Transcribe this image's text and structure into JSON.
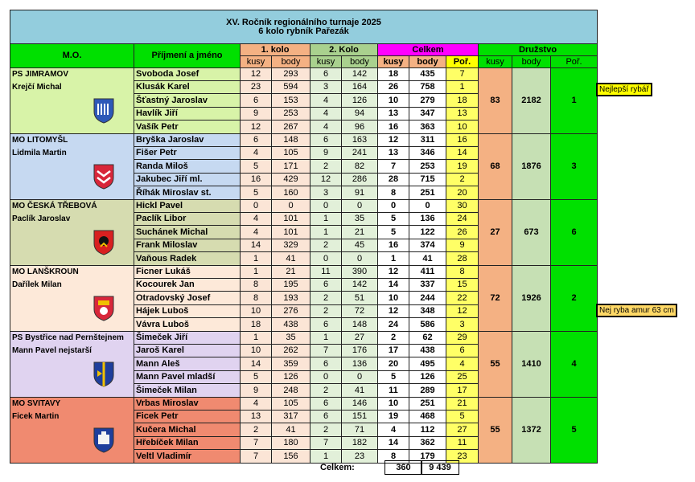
{
  "title": {
    "line1": "XV. Ročník regionálního turnaje 2025",
    "line2": "6 kolo rybník Pařezák"
  },
  "headers": {
    "mo": "M.O.",
    "name": "Příjmení a jméno",
    "kolo1": "1. kolo",
    "kolo2": "2. Kolo",
    "celkem": "Celkem",
    "druzstvo": "Družstvo",
    "kusy": "kusy",
    "body": "body",
    "por": "Poř."
  },
  "teams": [
    {
      "mo": "PS JIMRAMOV",
      "captain": "Krejčí Michal",
      "crest": "crest-jimramov",
      "colors": {
        "mo": "#d8f3a8",
        "name": "#d8f3a8"
      },
      "team": {
        "kusy": "83",
        "body": "2182",
        "por": "1"
      },
      "rows": [
        {
          "name": "Svoboda Josef",
          "k1k": "12",
          "k1b": "293",
          "k2k": "6",
          "k2b": "142",
          "ck": "18",
          "cb": "435",
          "por": "7"
        },
        {
          "name": "Klusák Karel",
          "k1k": "23",
          "k1b": "594",
          "k2k": "3",
          "k2b": "164",
          "ck": "26",
          "cb": "758",
          "por": "1"
        },
        {
          "name": "Šťastný Jaroslav",
          "k1k": "6",
          "k1b": "153",
          "k2k": "4",
          "k2b": "126",
          "ck": "10",
          "cb": "279",
          "por": "18"
        },
        {
          "name": "Havlík Jiří",
          "k1k": "9",
          "k1b": "253",
          "k2k": "4",
          "k2b": "94",
          "ck": "13",
          "cb": "347",
          "por": "13"
        },
        {
          "name": "Vašík Petr",
          "k1k": "12",
          "k1b": "267",
          "k2k": "4",
          "k2b": "96",
          "ck": "16",
          "cb": "363",
          "por": "10"
        }
      ]
    },
    {
      "mo": "MO LITOMYŠL",
      "captain": "Lidmila Martin",
      "crest": "crest-litomysl",
      "colors": {
        "mo": "#c6d9f1",
        "name": "#c6d9f1"
      },
      "team": {
        "kusy": "68",
        "body": "1876",
        "por": "3"
      },
      "rows": [
        {
          "name": "Bryška Jaroslav",
          "k1k": "6",
          "k1b": "148",
          "k2k": "6",
          "k2b": "163",
          "ck": "12",
          "cb": "311",
          "por": "16"
        },
        {
          "name": "Fišer Petr",
          "k1k": "4",
          "k1b": "105",
          "k2k": "9",
          "k2b": "241",
          "ck": "13",
          "cb": "346",
          "por": "14"
        },
        {
          "name": "Randa Miloš",
          "k1k": "5",
          "k1b": "171",
          "k2k": "2",
          "k2b": "82",
          "ck": "7",
          "cb": "253",
          "por": "19"
        },
        {
          "name": "Jakubec Jiří ml.",
          "k1k": "16",
          "k1b": "429",
          "k2k": "12",
          "k2b": "286",
          "ck": "28",
          "cb": "715",
          "por": "2"
        },
        {
          "name": "Říhák Miroslav st.",
          "k1k": "5",
          "k1b": "160",
          "k2k": "3",
          "k2b": "91",
          "ck": "8",
          "cb": "251",
          "por": "20"
        }
      ]
    },
    {
      "mo": "MO ČESKÁ TŘEBOVÁ",
      "captain": "Paclík Jaroslav",
      "crest": "crest-ceska-trebova",
      "colors": {
        "mo": "#d6dcb0",
        "name": "#d6dcb0"
      },
      "team": {
        "kusy": "27",
        "body": "673",
        "por": "6"
      },
      "rows": [
        {
          "name": "Hickl Pavel",
          "k1k": "0",
          "k1b": "0",
          "k2k": "0",
          "k2b": "0",
          "ck": "0",
          "cb": "0",
          "por": "30"
        },
        {
          "name": "Paclík Libor",
          "k1k": "4",
          "k1b": "101",
          "k2k": "1",
          "k2b": "35",
          "ck": "5",
          "cb": "136",
          "por": "24"
        },
        {
          "name": "Suchánek Michal",
          "k1k": "4",
          "k1b": "101",
          "k2k": "1",
          "k2b": "21",
          "ck": "5",
          "cb": "122",
          "por": "26"
        },
        {
          "name": "Frank Miloslav",
          "k1k": "14",
          "k1b": "329",
          "k2k": "2",
          "k2b": "45",
          "ck": "16",
          "cb": "374",
          "por": "9"
        },
        {
          "name": "Vaňous Radek",
          "k1k": "1",
          "k1b": "41",
          "k2k": "0",
          "k2b": "0",
          "ck": "1",
          "cb": "41",
          "por": "28"
        }
      ]
    },
    {
      "mo": "MO LANŠKROUN",
      "captain": "Dařílek Milan",
      "crest": "crest-lanskroun",
      "colors": {
        "mo": "#fde9d9",
        "name": "#fde9d9"
      },
      "team": {
        "kusy": "72",
        "body": "1926",
        "por": "2"
      },
      "rows": [
        {
          "name": "Ficner Lukáš",
          "k1k": "1",
          "k1b": "21",
          "k2k": "11",
          "k2b": "390",
          "ck": "12",
          "cb": "411",
          "por": "8"
        },
        {
          "name": "Kocourek Jan",
          "k1k": "8",
          "k1b": "195",
          "k2k": "6",
          "k2b": "142",
          "ck": "14",
          "cb": "337",
          "por": "15"
        },
        {
          "name": "Otradovský Josef",
          "k1k": "8",
          "k1b": "193",
          "k2k": "2",
          "k2b": "51",
          "ck": "10",
          "cb": "244",
          "por": "22"
        },
        {
          "name": "Hájek Luboš",
          "k1k": "10",
          "k1b": "276",
          "k2k": "2",
          "k2b": "72",
          "ck": "12",
          "cb": "348",
          "por": "12"
        },
        {
          "name": "Vávra Luboš",
          "k1k": "18",
          "k1b": "438",
          "k2k": "6",
          "k2b": "148",
          "ck": "24",
          "cb": "586",
          "por": "3"
        }
      ]
    },
    {
      "mo": "PS Bystřice nad Pernštejnem",
      "captain": "Mann Pavel nejstarší",
      "crest": "crest-bystrice",
      "colors": {
        "mo": "#e0d3f0",
        "name": "#e0d3f0"
      },
      "team": {
        "kusy": "55",
        "body": "1410",
        "por": "4"
      },
      "rows": [
        {
          "name": "Šimeček Jiří",
          "k1k": "1",
          "k1b": "35",
          "k2k": "1",
          "k2b": "27",
          "ck": "2",
          "cb": "62",
          "por": "29"
        },
        {
          "name": "Jaroš Karel",
          "k1k": "10",
          "k1b": "262",
          "k2k": "7",
          "k2b": "176",
          "ck": "17",
          "cb": "438",
          "por": "6"
        },
        {
          "name": "Mann Aleš",
          "k1k": "14",
          "k1b": "359",
          "k2k": "6",
          "k2b": "136",
          "ck": "20",
          "cb": "495",
          "por": "4"
        },
        {
          "name": "Mann Pavel mladší",
          "k1k": "5",
          "k1b": "126",
          "k2k": "0",
          "k2b": "0",
          "ck": "5",
          "cb": "126",
          "por": "25"
        },
        {
          "name": "Šimeček Milan",
          "k1k": "9",
          "k1b": "248",
          "k2k": "2",
          "k2b": "41",
          "ck": "11",
          "cb": "289",
          "por": "17"
        }
      ]
    },
    {
      "mo": "MO SVITAVY",
      "captain": "Ficek Martin",
      "crest": "crest-svitavy",
      "colors": {
        "mo": "#f08a70",
        "name": "#f08a70"
      },
      "team": {
        "kusy": "55",
        "body": "1372",
        "por": "5"
      },
      "rows": [
        {
          "name": "Vrbas Miroslav",
          "k1k": "4",
          "k1b": "105",
          "k2k": "6",
          "k2b": "146",
          "ck": "10",
          "cb": "251",
          "por": "21"
        },
        {
          "name": "Ficek Petr",
          "k1k": "13",
          "k1b": "317",
          "k2k": "6",
          "k2b": "151",
          "ck": "19",
          "cb": "468",
          "por": "5"
        },
        {
          "name": "Kučera Michal",
          "k1k": "2",
          "k1b": "41",
          "k2k": "2",
          "k2b": "71",
          "ck": "4",
          "cb": "112",
          "por": "27"
        },
        {
          "name": "Hřebíček Milan",
          "k1k": "7",
          "k1b": "180",
          "k2k": "7",
          "k2b": "182",
          "ck": "14",
          "cb": "362",
          "por": "11"
        },
        {
          "name": "Veltl Vladimír",
          "k1k": "7",
          "k1b": "156",
          "k2k": "1",
          "k2b": "23",
          "ck": "8",
          "cb": "179",
          "por": "23"
        }
      ]
    }
  ],
  "notes": {
    "best_fisher": "Nejlepší rybář",
    "best_amur": "Nej ryba amur 63 cm"
  },
  "total": {
    "label": "Celkem:",
    "kusy": "360",
    "body": "9 439"
  }
}
